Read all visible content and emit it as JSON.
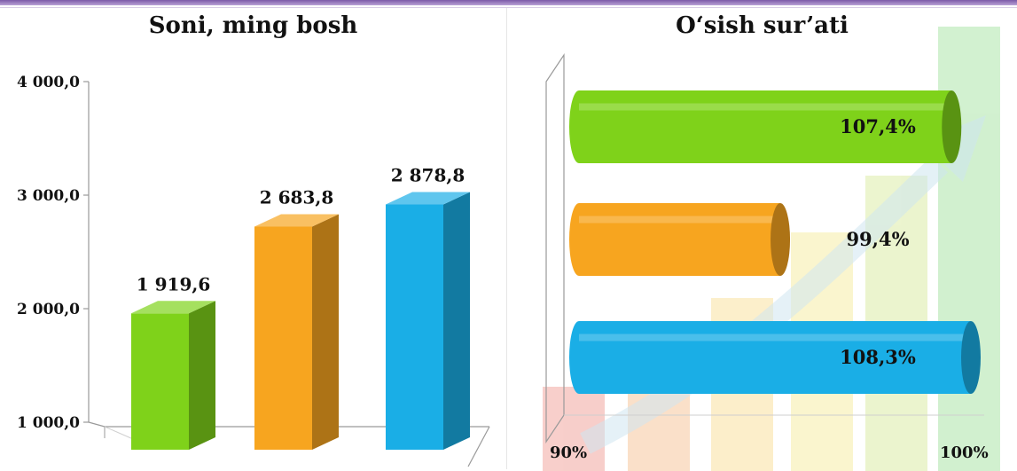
{
  "chart_data": [
    {
      "type": "bar",
      "title": "Soni, ming bosh",
      "categories": [
        "",
        "",
        ""
      ],
      "values": [
        1919.6,
        2683.8,
        2878.8
      ],
      "value_labels": [
        "1 919,6",
        "2 683,8",
        "2 878,8"
      ],
      "ylim": [
        1000,
        4000
      ],
      "yticks": [
        1000,
        2000,
        3000,
        4000
      ],
      "ytick_labels": [
        "1 000,0",
        "2 000,0",
        "3 000,0",
        "4 000,0"
      ],
      "colors": [
        "#7fd21a",
        "#f7a51f",
        "#1aaee6"
      ],
      "style": "3d-column",
      "grid": false,
      "legend": "none"
    },
    {
      "type": "bar",
      "orientation": "horizontal",
      "title": "O‘sish sur’ati",
      "categories": [
        "",
        "",
        ""
      ],
      "values": [
        107.4,
        99.4,
        108.3
      ],
      "value_labels": [
        "107,4%",
        "99,4%",
        "108,3%"
      ],
      "xtick_labels": [
        "90%",
        "100%"
      ],
      "colors": [
        "#7fd21a",
        "#f7a51f",
        "#1aaee6"
      ],
      "style": "3d-cylinder",
      "background": "growth-arrow-illustration",
      "grid": false,
      "legend": "none"
    }
  ]
}
